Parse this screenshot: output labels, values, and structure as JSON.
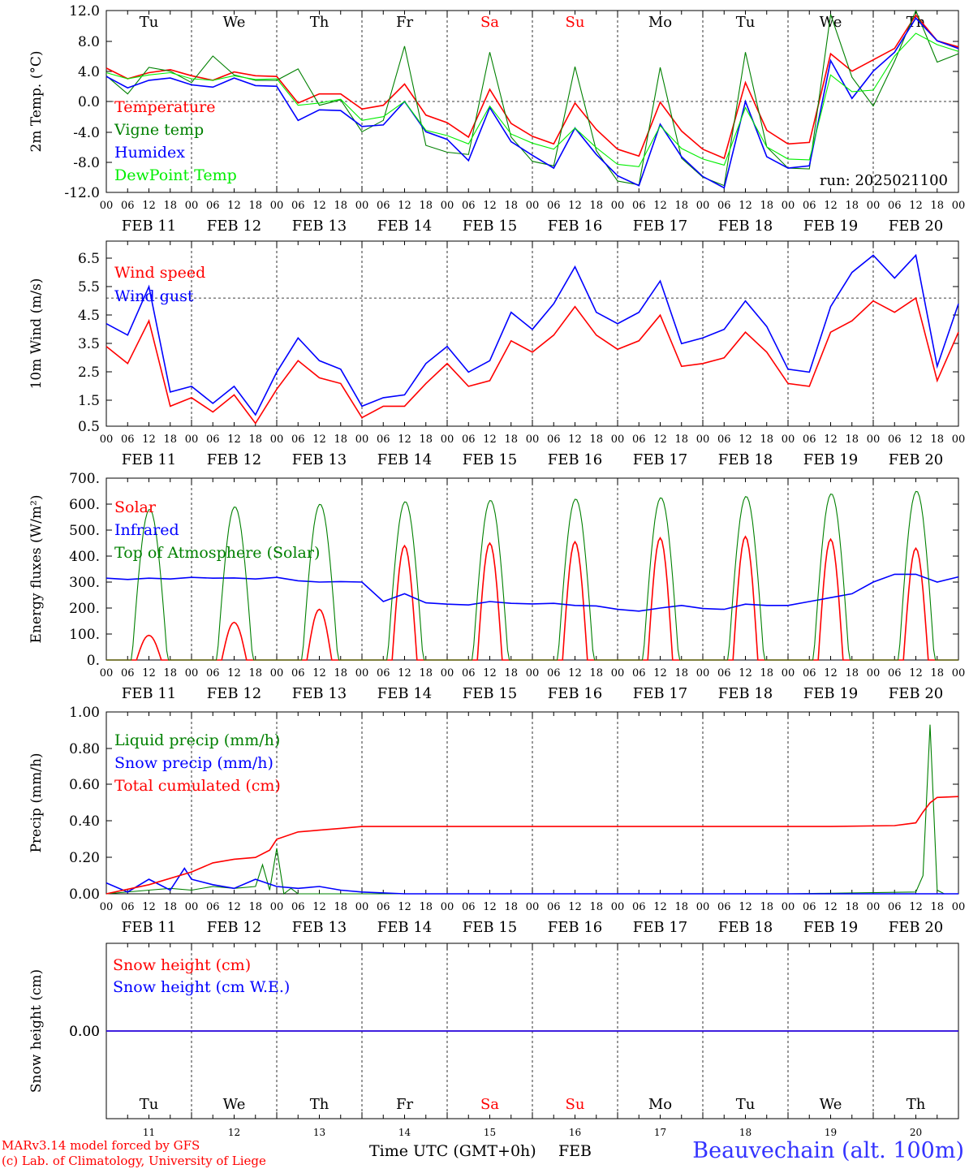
{
  "days": {
    "labels": [
      "Tu",
      "We",
      "Th",
      "Fr",
      "Sa",
      "Su",
      "Mo",
      "Tu",
      "We",
      "Th"
    ],
    "dates": [
      "FEB 11",
      "FEB 12",
      "FEB 13",
      "FEB 14",
      "FEB 15",
      "FEB 16",
      "FEB 17",
      "FEB 18",
      "FEB 19",
      "FEB 20"
    ],
    "day_numbers": [
      "11",
      "12",
      "13",
      "14",
      "15",
      "16",
      "17",
      "18",
      "19",
      "20"
    ],
    "weekend_color": "#ff0000",
    "weekday_color": "#000000",
    "weekend_index": [
      4,
      5
    ]
  },
  "hour_ticks": [
    "00",
    "06",
    "12",
    "18"
  ],
  "hour_end_tick": "00",
  "chart_data": [
    {
      "type": "line",
      "ylabel": "2m Temp. (°C)",
      "yticks": [
        "12.0",
        "8.0",
        "4.0",
        "0.0",
        "-4.0",
        "-8.0",
        "-12.0"
      ],
      "ylim": [
        -12,
        12
      ],
      "xlim_hours": [
        0,
        240
      ],
      "ref_line": 0,
      "run_label": "run: 2025021100",
      "series": [
        {
          "name": "Temperature",
          "color": "#ff0000",
          "hours": [
            0,
            6,
            12,
            18,
            24,
            30,
            36,
            42,
            48,
            54,
            60,
            66,
            72,
            78,
            84,
            90,
            96,
            102,
            108,
            114,
            120,
            126,
            132,
            138,
            144,
            150,
            156,
            162,
            168,
            174,
            180,
            186,
            192,
            198,
            204,
            210,
            216,
            222,
            228,
            234,
            240
          ],
          "values": [
            4.4,
            3.0,
            3.8,
            4.2,
            3.4,
            2.8,
            3.9,
            3.4,
            3.3,
            -0.2,
            1.0,
            1.0,
            -1.0,
            -0.5,
            2.3,
            -1.8,
            -2.8,
            -4.7,
            1.6,
            -2.9,
            -4.6,
            -5.6,
            -0.2,
            -3.7,
            -6.3,
            -7.2,
            -0.1,
            -3.9,
            -6.3,
            -7.5,
            2.5,
            -3.8,
            -5.6,
            -5.4,
            6.3,
            4.0,
            5.5,
            7.0,
            11.4,
            8.0,
            7.2
          ]
        },
        {
          "name": "Vigne temp",
          "color": "#008000",
          "hours": [
            0,
            6,
            12,
            18,
            24,
            30,
            36,
            42,
            48,
            54,
            60,
            66,
            72,
            78,
            84,
            90,
            96,
            102,
            108,
            114,
            120,
            126,
            132,
            138,
            144,
            150,
            156,
            162,
            168,
            174,
            180,
            186,
            192,
            198,
            204,
            210,
            216,
            222,
            228,
            234,
            240
          ],
          "values": [
            3.4,
            1.0,
            4.5,
            4.0,
            2.5,
            6.0,
            3.5,
            2.8,
            2.8,
            4.3,
            -0.5,
            0.2,
            -4.0,
            -2.5,
            7.3,
            -5.8,
            -6.7,
            -7.0,
            6.5,
            -4.7,
            -7.9,
            -8.5,
            4.6,
            -6.5,
            -10.5,
            -11.0,
            4.5,
            -7.5,
            -10.0,
            -11.1,
            6.5,
            -6.0,
            -8.8,
            -8.9,
            11.5,
            3.2,
            -0.6,
            5.3,
            12.5,
            5.2,
            6.3
          ]
        },
        {
          "name": "Humidex",
          "color": "#0000ff",
          "hours": [
            0,
            6,
            12,
            18,
            24,
            30,
            36,
            42,
            48,
            54,
            60,
            66,
            72,
            78,
            84,
            90,
            96,
            102,
            108,
            114,
            120,
            126,
            132,
            138,
            144,
            150,
            156,
            162,
            168,
            174,
            180,
            186,
            192,
            198,
            204,
            210,
            216,
            222,
            228,
            234,
            240
          ],
          "values": [
            3.3,
            1.8,
            2.8,
            3.1,
            2.2,
            1.9,
            3.1,
            2.1,
            2.0,
            -2.5,
            -1.1,
            -1.2,
            -3.3,
            -3.1,
            0.0,
            -4.0,
            -5.0,
            -7.8,
            -0.8,
            -5.3,
            -7.1,
            -8.8,
            -3.5,
            -7.0,
            -9.8,
            -11.1,
            -3.0,
            -7.3,
            -9.9,
            -11.4,
            0.0,
            -7.3,
            -8.8,
            -8.5,
            5.4,
            0.4,
            4.0,
            6.5,
            11.0,
            8.0,
            7.0
          ]
        },
        {
          "name": "DewPoint Temp",
          "color": "#00ee00",
          "hours": [
            0,
            6,
            12,
            18,
            24,
            30,
            36,
            42,
            48,
            54,
            60,
            66,
            72,
            78,
            84,
            90,
            96,
            102,
            108,
            114,
            120,
            126,
            132,
            138,
            144,
            150,
            156,
            162,
            168,
            174,
            180,
            186,
            192,
            198,
            204,
            210,
            216,
            222,
            228,
            234,
            240
          ],
          "values": [
            3.8,
            3.0,
            3.5,
            3.8,
            3.0,
            2.8,
            3.4,
            2.9,
            3.0,
            -0.5,
            -0.2,
            0.3,
            -2.5,
            -2.0,
            0.0,
            -3.8,
            -4.5,
            -5.6,
            -0.6,
            -4.3,
            -5.5,
            -6.3,
            -3.5,
            -6.1,
            -8.3,
            -8.6,
            -3.2,
            -6.2,
            -7.6,
            -8.4,
            -0.8,
            -6.0,
            -7.6,
            -7.7,
            3.5,
            1.3,
            1.5,
            6.0,
            9.0,
            7.5,
            6.6
          ]
        }
      ]
    },
    {
      "type": "line",
      "ylabel": "10m Wind (m/s)",
      "yticks": [
        "6.5",
        "5.5",
        "4.5",
        "3.5",
        "2.5",
        "1.5",
        "0.5"
      ],
      "ylim": [
        0.5,
        7.0
      ],
      "xlim_hours": [
        0,
        240
      ],
      "ref_line": 5.0,
      "series": [
        {
          "name": "Wind speed",
          "color": "#ff0000",
          "hours": [
            0,
            6,
            12,
            18,
            24,
            30,
            36,
            42,
            48,
            54,
            60,
            66,
            72,
            78,
            84,
            90,
            96,
            102,
            108,
            114,
            120,
            126,
            132,
            138,
            144,
            150,
            156,
            162,
            168,
            174,
            180,
            186,
            192,
            198,
            204,
            210,
            216,
            222,
            228,
            234,
            240
          ],
          "values": [
            3.3,
            2.7,
            4.2,
            1.2,
            1.5,
            1.0,
            1.6,
            0.6,
            1.8,
            2.8,
            2.2,
            2.0,
            0.8,
            1.2,
            1.2,
            2.0,
            2.7,
            1.9,
            2.1,
            3.5,
            3.1,
            3.7,
            4.7,
            3.7,
            3.2,
            3.5,
            4.4,
            2.6,
            2.7,
            2.9,
            3.8,
            3.1,
            2.0,
            1.9,
            3.8,
            4.2,
            4.9,
            4.5,
            5.0,
            2.1,
            3.8
          ]
        },
        {
          "name": "Wind gust",
          "color": "#0000ff",
          "hours": [
            0,
            6,
            12,
            18,
            24,
            30,
            36,
            42,
            48,
            54,
            60,
            66,
            72,
            78,
            84,
            90,
            96,
            102,
            108,
            114,
            120,
            126,
            132,
            138,
            144,
            150,
            156,
            162,
            168,
            174,
            180,
            186,
            192,
            198,
            204,
            210,
            216,
            222,
            228,
            234,
            240
          ],
          "values": [
            4.1,
            3.7,
            5.4,
            1.7,
            1.9,
            1.3,
            1.9,
            0.9,
            2.4,
            3.6,
            2.8,
            2.5,
            1.2,
            1.5,
            1.6,
            2.7,
            3.3,
            2.4,
            2.8,
            4.5,
            3.9,
            4.8,
            6.1,
            4.5,
            4.1,
            4.5,
            5.6,
            3.4,
            3.6,
            3.9,
            4.9,
            4.0,
            2.5,
            2.4,
            4.7,
            5.9,
            6.5,
            5.7,
            6.5,
            2.6,
            4.8
          ]
        }
      ]
    },
    {
      "type": "line",
      "ylabel": "Energy fluxes (W/m²)",
      "yticks": [
        "700.",
        "600.",
        "500.",
        "400.",
        "300.",
        "200.",
        "100.",
        "0."
      ],
      "ylim": [
        0,
        700
      ],
      "xlim_hours": [
        0,
        240
      ],
      "series": [
        {
          "name": "Solar",
          "color": "#ff0000",
          "daily_peaks": [
            95,
            145,
            195,
            440,
            450,
            455,
            470,
            475,
            465,
            430
          ]
        },
        {
          "name": "Infrared",
          "color": "#0000ff",
          "hours": [
            0,
            6,
            12,
            18,
            24,
            30,
            36,
            42,
            48,
            54,
            60,
            66,
            72,
            78,
            84,
            90,
            96,
            102,
            108,
            114,
            120,
            126,
            132,
            138,
            144,
            150,
            156,
            162,
            168,
            174,
            180,
            186,
            192,
            198,
            204,
            210,
            216,
            222,
            228,
            234,
            240
          ],
          "values": [
            315,
            310,
            315,
            312,
            318,
            315,
            316,
            312,
            318,
            305,
            300,
            302,
            300,
            225,
            255,
            220,
            215,
            212,
            225,
            218,
            216,
            218,
            210,
            208,
            195,
            188,
            200,
            210,
            198,
            195,
            215,
            210,
            210,
            225,
            240,
            255,
            300,
            330,
            330,
            300,
            320
          ]
        },
        {
          "name": "Top of Atmosphere (Solar)",
          "color": "#008000",
          "daily_peaks": [
            580,
            590,
            600,
            610,
            615,
            620,
            625,
            630,
            640,
            650
          ]
        }
      ]
    },
    {
      "type": "line",
      "ylabel": "Precip (mm/h)",
      "yticks": [
        "1.00",
        "0.80",
        "0.60",
        "0.40",
        "0.20",
        "0.00"
      ],
      "ylim": [
        0,
        1
      ],
      "xlim_hours": [
        0,
        240
      ],
      "series": [
        {
          "name": "Liquid precip (mm/h)",
          "color": "#008000",
          "hours": [
            0,
            12,
            18,
            24,
            30,
            36,
            42,
            44,
            46,
            48,
            50,
            52,
            54,
            60,
            72,
            96,
            192,
            228,
            230,
            232,
            234,
            236,
            240
          ],
          "values": [
            0.0,
            0.02,
            0.03,
            0.02,
            0.04,
            0.03,
            0.04,
            0.16,
            0.02,
            0.25,
            0.0,
            0.03,
            0.0,
            0.0,
            0.0,
            0.0,
            0.0,
            0.01,
            0.1,
            0.93,
            0.02,
            0.0,
            0.0
          ]
        },
        {
          "name": "Snow precip (mm/h)",
          "color": "#0000ff",
          "hours": [
            0,
            6,
            12,
            18,
            22,
            24,
            30,
            36,
            42,
            48,
            54,
            60,
            66,
            72,
            84,
            96,
            120,
            240
          ],
          "values": [
            0.06,
            0.01,
            0.08,
            0.02,
            0.14,
            0.08,
            0.05,
            0.03,
            0.08,
            0.04,
            0.03,
            0.04,
            0.02,
            0.01,
            0.0,
            0.0,
            0.0,
            0.0
          ]
        },
        {
          "name": "Total cumulated (cm)",
          "color": "#ff0000",
          "hours": [
            0,
            12,
            24,
            30,
            36,
            42,
            46,
            48,
            54,
            60,
            66,
            72,
            84,
            96,
            120,
            168,
            204,
            222,
            228,
            230,
            232,
            234,
            240
          ],
          "values": [
            0.0,
            0.05,
            0.12,
            0.17,
            0.19,
            0.2,
            0.24,
            0.3,
            0.34,
            0.35,
            0.36,
            0.37,
            0.37,
            0.37,
            0.37,
            0.37,
            0.37,
            0.375,
            0.39,
            0.45,
            0.5,
            0.53,
            0.535
          ]
        }
      ]
    },
    {
      "type": "line",
      "ylabel": "Snow height (cm)",
      "yticks": [
        "0.00"
      ],
      "xlim_hours": [
        0,
        240
      ],
      "series": [
        {
          "name": "Snow height (cm)",
          "color": "#ff0000",
          "hours": [
            0,
            240
          ],
          "values": [
            0,
            0
          ]
        },
        {
          "name": "Snow height (cm W.E.)",
          "color": "#0000ff",
          "hours": [
            0,
            240
          ],
          "values": [
            0,
            0
          ]
        }
      ]
    }
  ],
  "footer": {
    "model_line": "MARv3.14 model forced by GFS",
    "credit_line": "(c) Lab. of Climatology, University of Liege",
    "xlabel": "Time UTC (GMT+0h)",
    "month": "FEB",
    "station": "Beauvechain (alt. 100m)",
    "station_color": "#3333ff",
    "credit_color": "#ff0000"
  }
}
